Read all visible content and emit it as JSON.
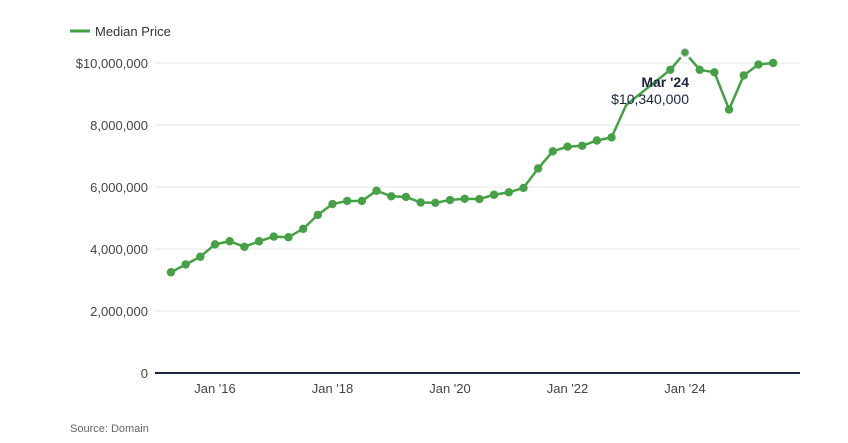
{
  "chart_data": {
    "type": "line",
    "title": "",
    "xlabel": "",
    "ylabel": "",
    "legend": {
      "position": "top-left",
      "entries": [
        "Median Price"
      ]
    },
    "series": [
      {
        "name": "Median Price",
        "color": "#45a046",
        "points": [
          {
            "x": "2015-04",
            "y": 3250000
          },
          {
            "x": "2015-07",
            "y": 3500000
          },
          {
            "x": "2015-10",
            "y": 3750000
          },
          {
            "x": "2016-01",
            "y": 4150000
          },
          {
            "x": "2016-04",
            "y": 4250000
          },
          {
            "x": "2016-07",
            "y": 4070000
          },
          {
            "x": "2016-10",
            "y": 4250000
          },
          {
            "x": "2017-01",
            "y": 4400000
          },
          {
            "x": "2017-04",
            "y": 4380000
          },
          {
            "x": "2017-07",
            "y": 4650000
          },
          {
            "x": "2017-10",
            "y": 5100000
          },
          {
            "x": "2018-01",
            "y": 5450000
          },
          {
            "x": "2018-04",
            "y": 5550000
          },
          {
            "x": "2018-07",
            "y": 5550000
          },
          {
            "x": "2018-10",
            "y": 5880000
          },
          {
            "x": "2019-01",
            "y": 5700000
          },
          {
            "x": "2019-04",
            "y": 5680000
          },
          {
            "x": "2019-07",
            "y": 5500000
          },
          {
            "x": "2019-10",
            "y": 5490000
          },
          {
            "x": "2020-01",
            "y": 5580000
          },
          {
            "x": "2020-04",
            "y": 5620000
          },
          {
            "x": "2020-07",
            "y": 5610000
          },
          {
            "x": "2020-10",
            "y": 5750000
          },
          {
            "x": "2021-01",
            "y": 5830000
          },
          {
            "x": "2021-04",
            "y": 5970000
          },
          {
            "x": "2021-07",
            "y": 6600000
          },
          {
            "x": "2021-10",
            "y": 7150000
          },
          {
            "x": "2022-01",
            "y": 7300000
          },
          {
            "x": "2022-04",
            "y": 7330000
          },
          {
            "x": "2022-07",
            "y": 7500000
          },
          {
            "x": "2022-10",
            "y": 7600000
          },
          {
            "x": "2023-01",
            "y": 8650000,
            "marker": false
          },
          {
            "x": "2023-10",
            "y": 9780000
          },
          {
            "x": "2024-01",
            "y": 10340000
          },
          {
            "x": "2024-04",
            "y": 9780000
          },
          {
            "x": "2024-07",
            "y": 9700000
          },
          {
            "x": "2024-10",
            "y": 8500000
          },
          {
            "x": "2025-01",
            "y": 9600000
          },
          {
            "x": "2025-04",
            "y": 9950000
          },
          {
            "x": "2025-07",
            "y": 10000000
          }
        ]
      }
    ],
    "x_axis": {
      "ticks": [
        {
          "x": "2016-01",
          "label": "Jan '16"
        },
        {
          "x": "2018-01",
          "label": "Jan '18"
        },
        {
          "x": "2020-01",
          "label": "Jan '20"
        },
        {
          "x": "2022-01",
          "label": "Jan '22"
        },
        {
          "x": "2024-01",
          "label": "Jan '24"
        }
      ]
    },
    "y_axis": {
      "ylim": [
        0,
        10500000
      ],
      "ticks": [
        {
          "value": 0,
          "label": "0"
        },
        {
          "value": 2000000,
          "label": "2,000,000"
        },
        {
          "value": 4000000,
          "label": "4,000,000"
        },
        {
          "value": 6000000,
          "label": "6,000,000"
        },
        {
          "value": 8000000,
          "label": "8,000,000"
        },
        {
          "value": 10000000,
          "label": "$10,000,000"
        }
      ],
      "grid": true
    },
    "annotation": {
      "x": "2024-01",
      "title": "Mar '24",
      "value_label": "$10,340,000"
    }
  },
  "source_text": "Source: Domain"
}
